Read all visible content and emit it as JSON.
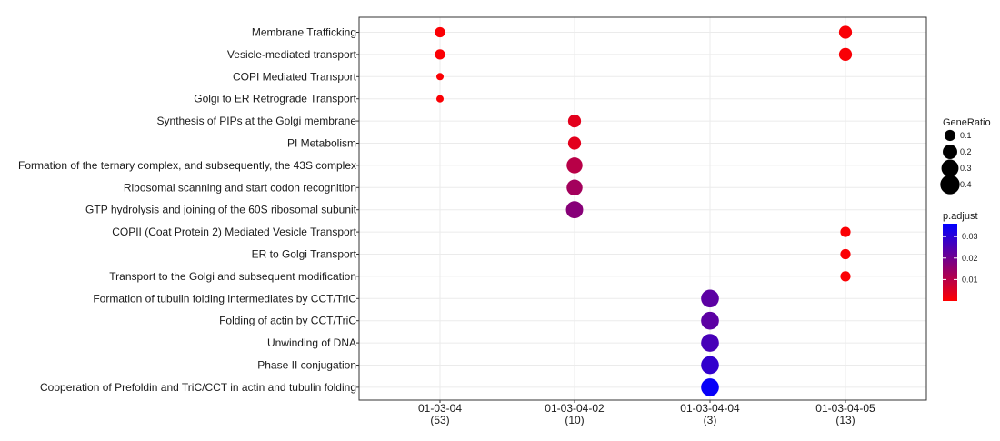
{
  "chart_data": {
    "type": "scatter",
    "title": "",
    "xlabel": "",
    "ylabel": "",
    "grid": true,
    "legend_position": "right",
    "x_categories": [
      {
        "label": "01-03-04",
        "count": "(53)"
      },
      {
        "label": "01-03-04-02",
        "count": "(10)"
      },
      {
        "label": "01-03-04-04",
        "count": "(3)"
      },
      {
        "label": "01-03-04-05",
        "count": "(13)"
      }
    ],
    "y_categories": [
      "Membrane Trafficking",
      "Vesicle-mediated transport",
      "COPI Mediated Transport",
      "Golgi to ER Retrograde Transport",
      "Synthesis of PIPs at the Golgi membrane",
      "PI Metabolism",
      "Formation of the ternary complex, and subsequently, the 43S complex",
      "Ribosomal scanning and start codon recognition",
      "GTP hydrolysis and joining of the 60S ribosomal subunit",
      "COPII (Coat Protein 2) Mediated Vesicle Transport",
      "ER to Golgi Transport",
      "Transport to the Golgi and subsequent modification",
      "Formation of tubulin folding intermediates by CCT/TriC",
      "Folding of actin by CCT/TriC",
      "Unwinding of DNA",
      "Phase II conjugation",
      "Cooperation of Prefoldin and TriC/CCT  in actin and tubulin folding"
    ],
    "points": [
      {
        "x": "01-03-04",
        "y": "Membrane Trafficking",
        "gene_ratio": 0.08,
        "p_adjust": 0.0005
      },
      {
        "x": "01-03-04",
        "y": "Vesicle-mediated transport",
        "gene_ratio": 0.08,
        "p_adjust": 0.0005
      },
      {
        "x": "01-03-04",
        "y": "COPI Mediated Transport",
        "gene_ratio": 0.03,
        "p_adjust": 0.0005
      },
      {
        "x": "01-03-04",
        "y": "Golgi to ER Retrograde Transport",
        "gene_ratio": 0.03,
        "p_adjust": 0.0005
      },
      {
        "x": "01-03-04-02",
        "y": "Synthesis of PIPs at the Golgi membrane",
        "gene_ratio": 0.15,
        "p_adjust": 0.004
      },
      {
        "x": "01-03-04-02",
        "y": "PI Metabolism",
        "gene_ratio": 0.15,
        "p_adjust": 0.004
      },
      {
        "x": "01-03-04-02",
        "y": "Formation of the ternary complex, and subsequently, the 43S complex",
        "gene_ratio": 0.25,
        "p_adjust": 0.01
      },
      {
        "x": "01-03-04-02",
        "y": "Ribosomal scanning and start codon recognition",
        "gene_ratio": 0.25,
        "p_adjust": 0.013
      },
      {
        "x": "01-03-04-02",
        "y": "GTP hydrolysis and joining of the 60S ribosomal subunit",
        "gene_ratio": 0.3,
        "p_adjust": 0.017
      },
      {
        "x": "01-03-04-05",
        "y": "COPII (Coat Protein 2) Mediated Vesicle Transport",
        "gene_ratio": 0.08,
        "p_adjust": 0.0005
      },
      {
        "x": "01-03-04-05",
        "y": "ER to Golgi Transport",
        "gene_ratio": 0.08,
        "p_adjust": 0.0005
      },
      {
        "x": "01-03-04-05",
        "y": "Transport to the Golgi and subsequent modification",
        "gene_ratio": 0.08,
        "p_adjust": 0.0005
      },
      {
        "x": "01-03-04-05",
        "y": "Membrane Trafficking",
        "gene_ratio": 0.15,
        "p_adjust": 0.0008
      },
      {
        "x": "01-03-04-05",
        "y": "Vesicle-mediated transport",
        "gene_ratio": 0.15,
        "p_adjust": 0.0008
      },
      {
        "x": "01-03-04-04",
        "y": "Formation of tubulin folding intermediates by CCT/TriC",
        "gene_ratio": 0.33,
        "p_adjust": 0.023
      },
      {
        "x": "01-03-04-04",
        "y": "Folding of actin by CCT/TriC",
        "gene_ratio": 0.33,
        "p_adjust": 0.023
      },
      {
        "x": "01-03-04-04",
        "y": "Unwinding of DNA",
        "gene_ratio": 0.33,
        "p_adjust": 0.026
      },
      {
        "x": "01-03-04-04",
        "y": "Phase II conjugation",
        "gene_ratio": 0.33,
        "p_adjust": 0.029
      },
      {
        "x": "01-03-04-04",
        "y": "Cooperation of Prefoldin and TriC/CCT  in actin and tubulin folding",
        "gene_ratio": 0.33,
        "p_adjust": 0.035
      }
    ],
    "size_legend": {
      "title": "GeneRatio",
      "values": [
        0.1,
        0.2,
        0.3,
        0.4
      ],
      "labels": [
        "0.1",
        "0.2",
        "0.3",
        "0.4"
      ]
    },
    "color_legend": {
      "title": "p.adjust",
      "min": 0.0,
      "max": 0.036,
      "ticks": [
        0.01,
        0.02,
        0.03
      ],
      "tick_labels": [
        "0.01",
        "0.02",
        "0.03"
      ],
      "low_color": "#FF0000",
      "high_color": "#0000FF"
    }
  }
}
